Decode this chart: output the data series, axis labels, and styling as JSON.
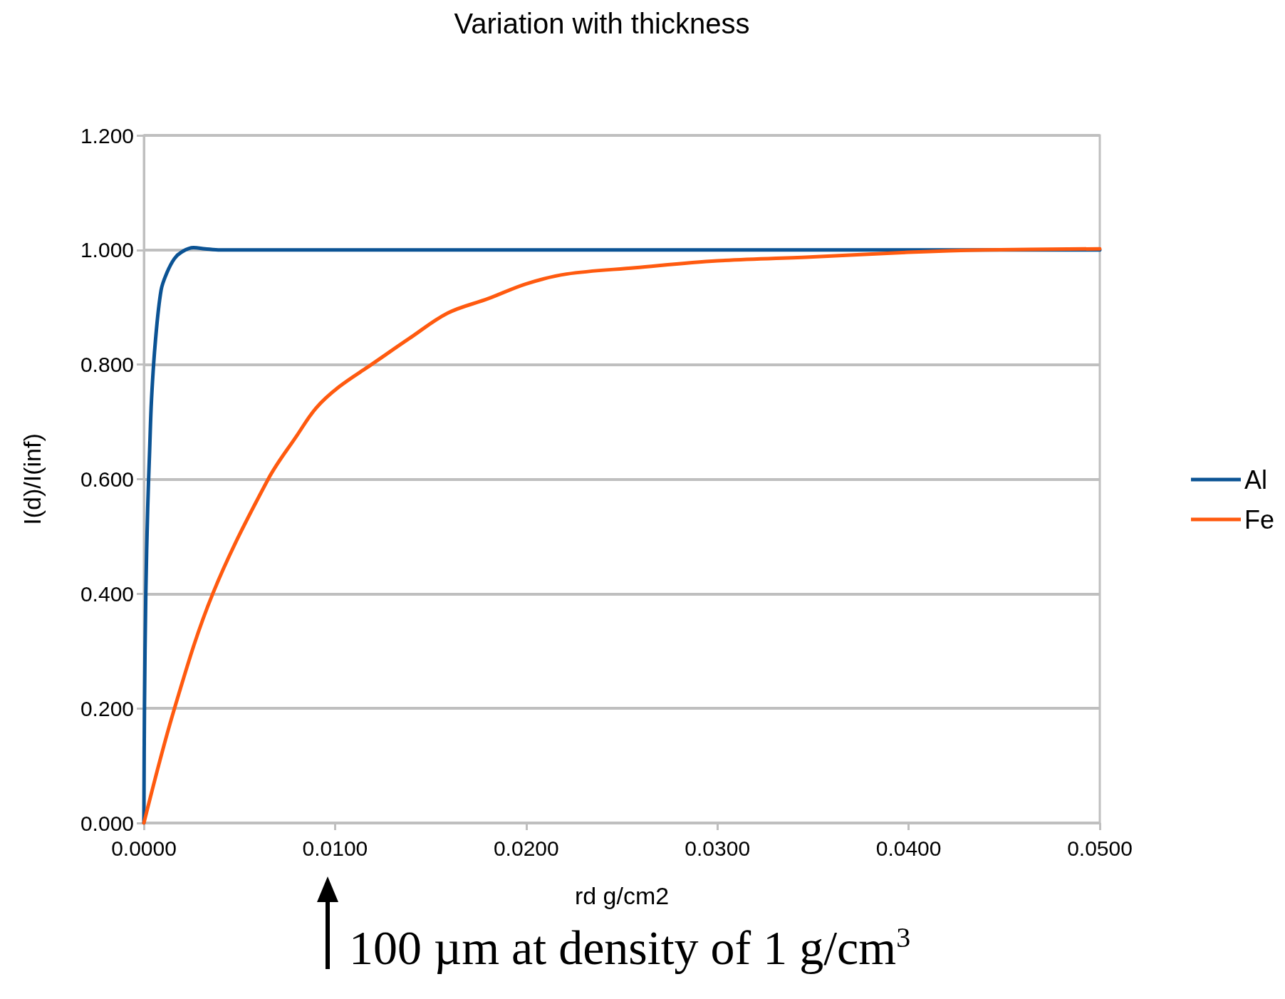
{
  "chart_data": {
    "type": "line",
    "title": "Variation with thickness",
    "xlabel": "rd g/cm2",
    "ylabel": "I(d)/I(inf)",
    "xlim": [
      0,
      0.05
    ],
    "xticks": [
      {
        "value": 0,
        "label": "0.0000"
      },
      {
        "value": 0.01,
        "label": "0.0100"
      },
      {
        "value": 0.02,
        "label": "0.0200"
      },
      {
        "value": 0.03,
        "label": "0.0300"
      },
      {
        "value": 0.04,
        "label": "0.0400"
      },
      {
        "value": 0.05,
        "label": "0.0500"
      }
    ],
    "ylim": [
      0,
      1.2
    ],
    "yticks": [
      {
        "value": 0,
        "label": "0.000"
      },
      {
        "value": 0.2,
        "label": "0.200"
      },
      {
        "value": 0.4,
        "label": "0.400"
      },
      {
        "value": 0.6,
        "label": "0.600"
      },
      {
        "value": 0.8,
        "label": "0.800"
      },
      {
        "value": 1,
        "label": "1.000"
      },
      {
        "value": 1.2,
        "label": "1.200"
      }
    ],
    "grid": "y",
    "legend": "right",
    "marker": "none",
    "line_style": "solid",
    "series": [
      {
        "name": "Al",
        "color": "#0b5394",
        "x": [
          0,
          3e-05,
          0.0001,
          0.0002,
          0.0003,
          0.0004,
          0.0006,
          0.0009,
          0.0012,
          0.0016,
          0.002,
          0.0026,
          0.0032,
          0.004,
          0.05
        ],
        "values": [
          0,
          0.2,
          0.4,
          0.55,
          0.65,
          0.74,
          0.84,
          0.93,
          0.96,
          0.985,
          0.997,
          1.004,
          1.002,
          1.0,
          1.0
        ]
      },
      {
        "name": "Fe",
        "color": "#ff5a0f",
        "x": [
          0,
          0.0016,
          0.0036,
          0.0065,
          0.008,
          0.009,
          0.0102,
          0.0119,
          0.0139,
          0.0159,
          0.018,
          0.02,
          0.0221,
          0.0257,
          0.03,
          0.035,
          0.04,
          0.044,
          0.05
        ],
        "values": [
          0,
          0.2,
          0.4,
          0.6,
          0.676,
          0.724,
          0.761,
          0.8,
          0.846,
          0.89,
          0.915,
          0.941,
          0.958,
          0.969,
          0.981,
          0.988,
          0.996,
          1.0,
          1.002
        ]
      }
    ],
    "annotations": [
      "100 µm at density of 1 g/cm$^{3}$"
    ]
  }
}
